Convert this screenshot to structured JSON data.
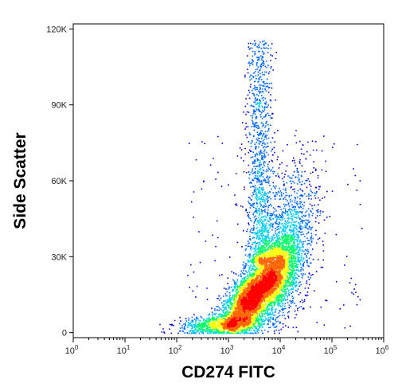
{
  "chart_data": {
    "type": "scatter",
    "plot_style": "density pseudocolor flow cytometry dot plot",
    "title": "",
    "xlabel": "CD274 FITC",
    "ylabel": "Side Scatter",
    "x_scale": "log",
    "y_scale": "linear",
    "xlim": [
      1,
      1000000
    ],
    "ylim": [
      -2000,
      122000
    ],
    "x_ticks": [
      {
        "value": 1,
        "base": "10",
        "exp": "0"
      },
      {
        "value": 10,
        "base": "10",
        "exp": "1"
      },
      {
        "value": 100,
        "base": "10",
        "exp": "2"
      },
      {
        "value": 1000,
        "base": "10",
        "exp": "3"
      },
      {
        "value": 10000,
        "base": "10",
        "exp": "4"
      },
      {
        "value": 100000,
        "base": "10",
        "exp": "5"
      },
      {
        "value": 1000000,
        "base": "10",
        "exp": "6"
      }
    ],
    "y_ticks": [
      {
        "value": 0,
        "label": "0"
      },
      {
        "value": 30000,
        "label": "30K"
      },
      {
        "value": 60000,
        "label": "60K"
      },
      {
        "value": 90000,
        "label": "90K"
      },
      {
        "value": 120000,
        "label": "120K"
      }
    ],
    "grid": false,
    "legend": "none",
    "density_colors": [
      "#0000cc",
      "#0066ff",
      "#00ccff",
      "#00ff66",
      "#ffff00",
      "#ff6600",
      "#ff0000"
    ],
    "clusters": [
      {
        "x_center": 3000,
        "y_center": 12000,
        "note": "high-density core (red)"
      },
      {
        "x_center": 8000,
        "y_center": 25000,
        "note": "secondary dense region"
      },
      {
        "x_center": 4500,
        "y_center": 70000,
        "note": "vertical tail extending upward"
      }
    ]
  }
}
